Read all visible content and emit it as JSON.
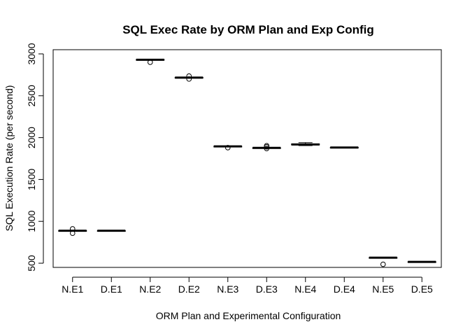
{
  "chart_data": {
    "type": "box",
    "title": "SQL Exec Rate by ORM Plan and Exp Config",
    "xlabel": "ORM Plan and Experimental Configuration",
    "ylabel": "SQL Execution Rate (per second)",
    "ylim": [
      450,
      3050
    ],
    "yticks": [
      500,
      1000,
      1500,
      2000,
      2500,
      3000
    ],
    "grid": false,
    "categories": [
      "N.E1",
      "D.E1",
      "N.E2",
      "D.E2",
      "N.E3",
      "D.E3",
      "N.E4",
      "D.E4",
      "N.E5",
      "D.E5"
    ],
    "boxes": [
      {
        "min": 885,
        "q1": 885,
        "median": 888,
        "q3": 890,
        "max": 893,
        "outliers": [
          910,
          858
        ]
      },
      {
        "min": 886,
        "q1": 886,
        "median": 888,
        "q3": 889,
        "max": 890,
        "outliers": []
      },
      {
        "min": 2925,
        "q1": 2927,
        "median": 2930,
        "q3": 2933,
        "max": 2937,
        "outliers": [
          2900
        ]
      },
      {
        "min": 2712,
        "q1": 2714,
        "median": 2717,
        "q3": 2719,
        "max": 2722,
        "outliers": [
          2735,
          2700
        ]
      },
      {
        "min": 1892,
        "q1": 1893,
        "median": 1895,
        "q3": 1897,
        "max": 1898,
        "outliers": [
          1880
        ]
      },
      {
        "min": 1874,
        "q1": 1875,
        "median": 1877,
        "q3": 1879,
        "max": 1880,
        "outliers": [
          1903,
          1890,
          1870
        ]
      },
      {
        "min": 1905,
        "q1": 1913,
        "median": 1918,
        "q3": 1925,
        "max": 1940,
        "outliers": []
      },
      {
        "min": 1877,
        "q1": 1879,
        "median": 1882,
        "q3": 1884,
        "max": 1886,
        "outliers": []
      },
      {
        "min": 563,
        "q1": 564,
        "median": 566,
        "q3": 568,
        "max": 570,
        "outliers": [
          487
        ]
      },
      {
        "min": 513,
        "q1": 514,
        "median": 516,
        "q3": 518,
        "max": 519,
        "outliers": []
      }
    ]
  }
}
